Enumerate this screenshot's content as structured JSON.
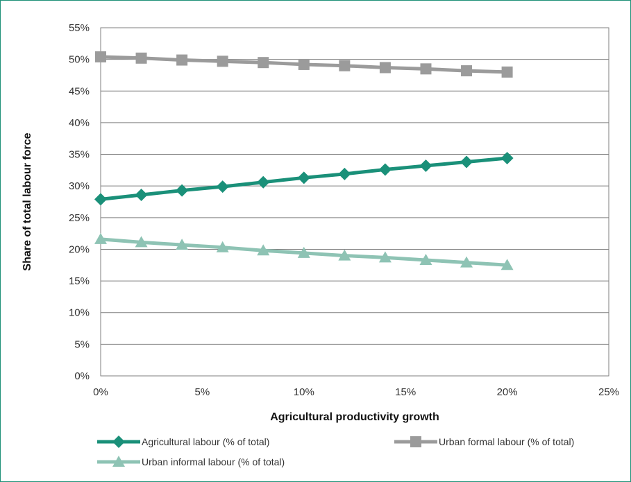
{
  "chart_data": {
    "type": "line",
    "xlabel": "Agricultural productivity growth",
    "ylabel": "Share of total labour force",
    "xlim": [
      0,
      25
    ],
    "ylim": [
      0,
      55
    ],
    "x_ticks": [
      0,
      5,
      10,
      15,
      20,
      25
    ],
    "y_ticks": [
      0,
      5,
      10,
      15,
      20,
      25,
      30,
      35,
      40,
      45,
      50,
      55
    ],
    "x_tick_labels": [
      "0%",
      "5%",
      "10%",
      "15%",
      "20%",
      "25%"
    ],
    "y_tick_labels": [
      "0%",
      "5%",
      "10%",
      "15%",
      "20%",
      "25%",
      "30%",
      "35%",
      "40%",
      "45%",
      "50%",
      "55%"
    ],
    "grid": "horizontal",
    "legend_position": "bottom",
    "x": [
      0,
      2,
      4,
      6,
      8,
      10,
      12,
      14,
      16,
      18,
      20
    ],
    "series": [
      {
        "name": "Agricultural labour (% of total)",
        "color": "#1a9079",
        "marker": "diamond",
        "values": [
          27.9,
          28.6,
          29.3,
          29.9,
          30.6,
          31.3,
          31.9,
          32.6,
          33.2,
          33.8,
          34.4
        ]
      },
      {
        "name": "Urban formal labour (% of total)",
        "color": "#9b9b9b",
        "marker": "square",
        "values": [
          50.4,
          50.2,
          49.9,
          49.7,
          49.5,
          49.2,
          49.0,
          48.7,
          48.5,
          48.2,
          48.0
        ]
      },
      {
        "name": "Urban informal labour (% of total)",
        "color": "#8ec3b4",
        "marker": "triangle",
        "values": [
          21.6,
          21.1,
          20.7,
          20.3,
          19.8,
          19.4,
          19.0,
          18.7,
          18.3,
          17.9,
          17.5
        ]
      }
    ]
  }
}
